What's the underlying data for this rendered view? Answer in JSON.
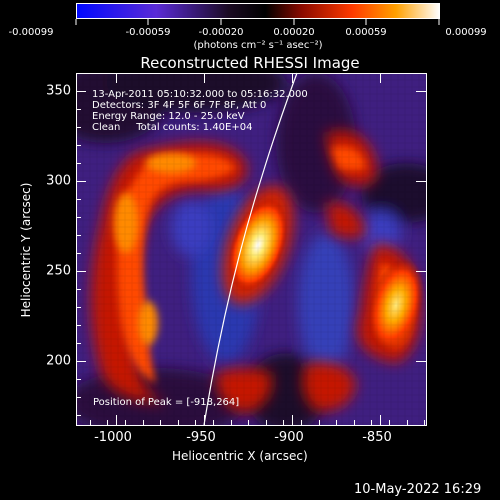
{
  "colorbar": {
    "colormap": "blue-purple-black-red-orange-yellow-white",
    "tick_labels": [
      "-0.00099",
      "-0.00059",
      "-0.00020",
      "0.00020",
      "0.00059",
      "0.00099"
    ],
    "units": "(photons cm⁻² s⁻¹ asec⁻²)"
  },
  "plot": {
    "title": "Reconstructed RHESSI Image",
    "x_axis": {
      "label": "Heliocentric X (arcsec)",
      "range": [
        -1020,
        -822
      ],
      "ticks": [
        "-1000",
        "-950",
        "-900",
        "-850"
      ]
    },
    "y_axis": {
      "label": "Heliocentric Y (arcsec)",
      "range": [
        167,
        362
      ],
      "ticks": [
        "350",
        "300",
        "250",
        "200"
      ]
    },
    "info_lines": [
      "13-Apr-2011 05:10:32.000 to 05:16:32.000",
      "Detectors: 3F 4F 5F 6F 7F 8F, Att 0",
      "Energy Range: 12.0 - 25.0 keV",
      "Clean     Total counts: 1.40E+04"
    ],
    "peak_text": "Position of Peak = [-918,264]",
    "colors": {
      "background": "#000000",
      "image_background": "#3a1a78",
      "axis": "#ffffff"
    }
  },
  "footer": {
    "timestamp": "10-May-2022 16:29"
  }
}
